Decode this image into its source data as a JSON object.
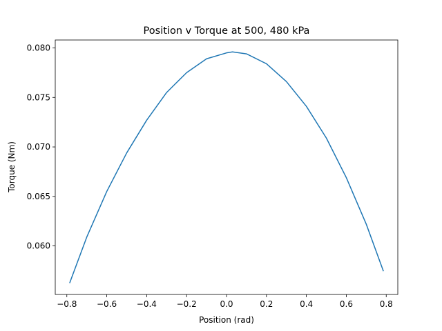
{
  "chart_data": {
    "type": "line",
    "title": "Position v Torque at 500, 480 kPa",
    "xlabel": "Position (rad)",
    "ylabel": "Torque (Nm)",
    "xlim": [
      -0.858,
      0.858
    ],
    "ylim": [
      0.0551,
      0.0808
    ],
    "xticks": [
      -0.8,
      -0.6,
      -0.4,
      -0.2,
      0.0,
      0.2,
      0.4,
      0.6,
      0.8
    ],
    "xtick_labels": [
      "−0.8",
      "−0.6",
      "−0.4",
      "−0.2",
      "0.0",
      "0.2",
      "0.4",
      "0.6",
      "0.8"
    ],
    "yticks": [
      0.06,
      0.065,
      0.07,
      0.075,
      0.08
    ],
    "ytick_labels": [
      "0.060",
      "0.065",
      "0.070",
      "0.075",
      "0.080"
    ],
    "grid": false,
    "series": [
      {
        "color": "#1f77b4",
        "x": [
          -0.785,
          -0.7,
          -0.6,
          -0.5,
          -0.4,
          -0.3,
          -0.2,
          -0.1,
          0.0,
          0.03,
          0.1,
          0.2,
          0.3,
          0.4,
          0.5,
          0.6,
          0.7,
          0.785
        ],
        "y": [
          0.0563,
          0.0609,
          0.0655,
          0.0694,
          0.0727,
          0.0755,
          0.0775,
          0.0789,
          0.0795,
          0.0796,
          0.0794,
          0.0784,
          0.0766,
          0.0741,
          0.0709,
          0.0669,
          0.0622,
          0.0575
        ]
      }
    ]
  }
}
